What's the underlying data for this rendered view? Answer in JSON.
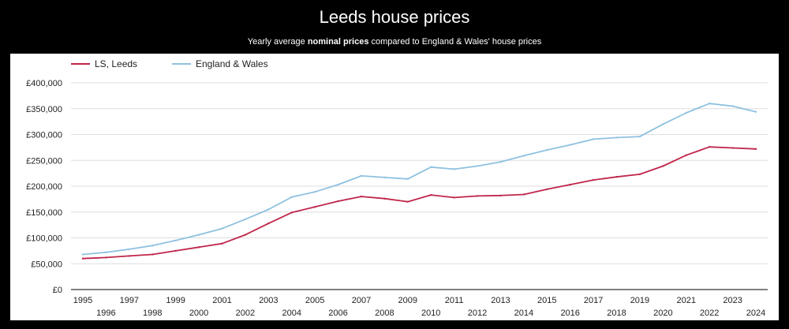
{
  "header": {
    "title": "Leeds house prices",
    "subtitle_prefix": "Yearly average ",
    "subtitle_bold": "nominal prices",
    "subtitle_suffix": " compared to England & Wales' house prices"
  },
  "chart_data": {
    "type": "line",
    "title": "Leeds house prices",
    "subtitle": "Yearly average nominal prices compared to England & Wales' house prices",
    "xlabel": "",
    "ylabel": "",
    "x": [
      1995,
      1996,
      1997,
      1998,
      1999,
      2000,
      2001,
      2002,
      2003,
      2004,
      2005,
      2006,
      2007,
      2008,
      2009,
      2010,
      2011,
      2012,
      2013,
      2014,
      2015,
      2016,
      2017,
      2018,
      2019,
      2020,
      2021,
      2022,
      2023,
      2024
    ],
    "series": [
      {
        "name": "LS, Leeds",
        "color": "#c0264a",
        "values": [
          60000,
          62000,
          65000,
          68000,
          75000,
          82000,
          89000,
          106000,
          128000,
          149000,
          160000,
          171000,
          180000,
          176000,
          170000,
          183000,
          178000,
          181000,
          182000,
          184000,
          194000,
          203000,
          212000,
          218000,
          223000,
          239000,
          260000,
          276000,
          274000,
          272000
        ]
      },
      {
        "name": "England & Wales",
        "color": "#8fc1e0",
        "values": [
          68000,
          72000,
          78000,
          85000,
          95000,
          106000,
          118000,
          136000,
          155000,
          179000,
          189000,
          203000,
          220000,
          217000,
          214000,
          237000,
          233000,
          239000,
          247000,
          259000,
          270000,
          280000,
          291000,
          294000,
          296000,
          320000,
          342000,
          360000,
          355000,
          344000
        ]
      }
    ],
    "ylim": [
      0,
      400000
    ],
    "yticks": [
      0,
      50000,
      100000,
      150000,
      200000,
      250000,
      300000,
      350000,
      400000
    ],
    "ytick_labels": [
      "£0",
      "£50,000",
      "£100,000",
      "£150,000",
      "£200,000",
      "£250,000",
      "£300,000",
      "£350,000",
      "£400,000"
    ],
    "xtick_labels": [
      "1995",
      "1996",
      "1997",
      "1998",
      "1999",
      "2000",
      "2001",
      "2002",
      "2003",
      "2004",
      "2005",
      "2006",
      "2007",
      "2008",
      "2009",
      "2010",
      "2011",
      "2012",
      "2013",
      "2014",
      "2015",
      "2016",
      "2017",
      "2018",
      "2019",
      "2020",
      "2021",
      "2022",
      "2023",
      "2024"
    ],
    "grid": true,
    "legend": "top-left",
    "gridline_color": "#dddddd",
    "axis_color": "#333333",
    "label_color": "#222222"
  }
}
